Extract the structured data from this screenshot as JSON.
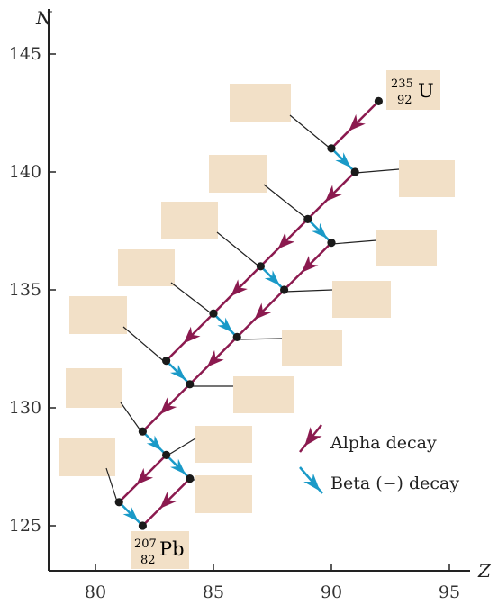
{
  "chart_data": {
    "type": "diagram",
    "xlabel": "Z",
    "ylabel": "N",
    "xticks": [
      80,
      85,
      90,
      95
    ],
    "yticks": [
      125,
      130,
      135,
      140,
      145
    ],
    "xlim": [
      78,
      97
    ],
    "ylim": [
      123,
      147
    ],
    "nuclides": [
      {
        "z": 92,
        "n": 143
      },
      {
        "z": 90,
        "n": 141
      },
      {
        "z": 91,
        "n": 140
      },
      {
        "z": 89,
        "n": 138
      },
      {
        "z": 90,
        "n": 137
      },
      {
        "z": 87,
        "n": 136
      },
      {
        "z": 88,
        "n": 135
      },
      {
        "z": 85,
        "n": 134
      },
      {
        "z": 86,
        "n": 133
      },
      {
        "z": 83,
        "n": 132
      },
      {
        "z": 84,
        "n": 131
      },
      {
        "z": 82,
        "n": 129
      },
      {
        "z": 83,
        "n": 128
      },
      {
        "z": 84,
        "n": 127
      },
      {
        "z": 81,
        "n": 126
      },
      {
        "z": 82,
        "n": 125
      }
    ],
    "decays": [
      {
        "type": "alpha",
        "from": [
          92,
          143
        ],
        "to": [
          90,
          141
        ]
      },
      {
        "type": "beta",
        "from": [
          90,
          141
        ],
        "to": [
          91,
          140
        ]
      },
      {
        "type": "alpha",
        "from": [
          91,
          140
        ],
        "to": [
          89,
          138
        ]
      },
      {
        "type": "beta",
        "from": [
          89,
          138
        ],
        "to": [
          90,
          137
        ]
      },
      {
        "type": "alpha",
        "from": [
          89,
          138
        ],
        "to": [
          87,
          136
        ]
      },
      {
        "type": "alpha",
        "from": [
          90,
          137
        ],
        "to": [
          88,
          135
        ]
      },
      {
        "type": "beta",
        "from": [
          87,
          136
        ],
        "to": [
          88,
          135
        ]
      },
      {
        "type": "alpha",
        "from": [
          87,
          136
        ],
        "to": [
          85,
          134
        ]
      },
      {
        "type": "alpha",
        "from": [
          88,
          135
        ],
        "to": [
          86,
          133
        ]
      },
      {
        "type": "beta",
        "from": [
          85,
          134
        ],
        "to": [
          86,
          133
        ]
      },
      {
        "type": "alpha",
        "from": [
          85,
          134
        ],
        "to": [
          83,
          132
        ]
      },
      {
        "type": "alpha",
        "from": [
          86,
          133
        ],
        "to": [
          84,
          131
        ]
      },
      {
        "type": "beta",
        "from": [
          83,
          132
        ],
        "to": [
          84,
          131
        ]
      },
      {
        "type": "alpha",
        "from": [
          84,
          131
        ],
        "to": [
          82,
          129
        ]
      },
      {
        "type": "beta",
        "from": [
          82,
          129
        ],
        "to": [
          83,
          128
        ]
      },
      {
        "type": "alpha",
        "from": [
          83,
          128
        ],
        "to": [
          81,
          126
        ]
      },
      {
        "type": "beta",
        "from": [
          83,
          128
        ],
        "to": [
          84,
          127
        ]
      },
      {
        "type": "alpha",
        "from": [
          84,
          127
        ],
        "to": [
          82,
          125
        ]
      },
      {
        "type": "beta",
        "from": [
          81,
          126
        ],
        "to": [
          82,
          125
        ]
      }
    ],
    "start_label": {
      "mass": "235",
      "atomic": "92",
      "symbol": "U",
      "at": [
        92,
        143
      ]
    },
    "end_label": {
      "mass": "207",
      "atomic": "82",
      "symbol": "Pb",
      "at": [
        82,
        125
      ]
    },
    "legend": [
      {
        "label": "Alpha decay",
        "type": "alpha"
      },
      {
        "label": "Beta (−) decay",
        "type": "beta"
      }
    ],
    "blank_label_boxes": 14,
    "colors": {
      "alpha": "#8b1a4f",
      "beta": "#1a9ac8",
      "nuclide": "#1a1a1a",
      "box": "#f2e0c7",
      "axis": "#222222"
    }
  }
}
